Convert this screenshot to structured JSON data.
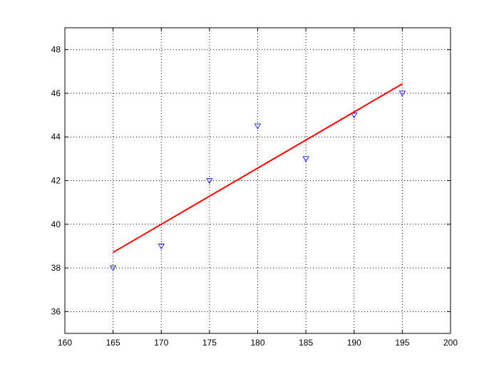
{
  "chart_data": {
    "type": "scatter",
    "title": "",
    "xlabel": "",
    "ylabel": "",
    "xlim": [
      160,
      200
    ],
    "ylim": [
      35,
      49
    ],
    "xticks": [
      160,
      165,
      170,
      175,
      180,
      185,
      190,
      195,
      200
    ],
    "yticks": [
      36,
      38,
      40,
      42,
      44,
      46,
      48
    ],
    "grid": true,
    "legend": "none",
    "series": [
      {
        "kind": "scatter",
        "marker": "triangle-down",
        "color": "#0000ff",
        "x": [
          165,
          170,
          175,
          180,
          185,
          190,
          195
        ],
        "y": [
          38,
          39,
          42,
          44.5,
          43,
          45,
          46
        ]
      },
      {
        "kind": "line",
        "color": "#ff0000",
        "x": [
          165,
          195
        ],
        "y": [
          38.71,
          46.43
        ]
      }
    ]
  }
}
